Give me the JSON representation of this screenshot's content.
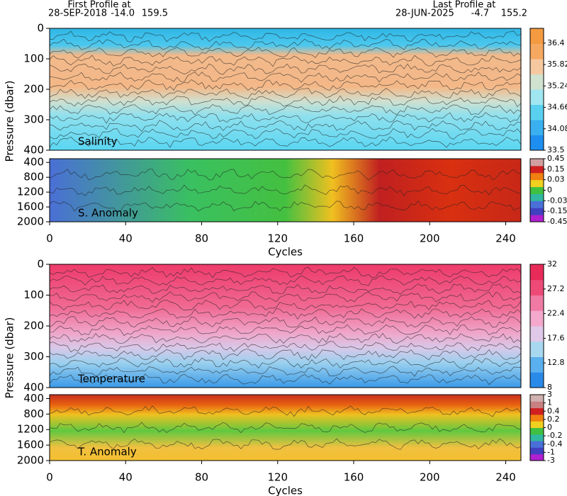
{
  "header": {
    "first": {
      "label": "First Profile at",
      "date": "28-SEP-2018",
      "lat": "-14.0",
      "lon": "159.5"
    },
    "last": {
      "label": "Last Profile at",
      "date": "28-JUN-2025",
      "lat": "-4.7",
      "lon": "155.2"
    }
  },
  "chart_data": [
    {
      "type": "contour",
      "label": "Salinity",
      "ylabel": "Pressure (dbar)",
      "ylim": [
        0,
        400
      ],
      "yticks": [
        0,
        100,
        200,
        300,
        400
      ],
      "colorbar": {
        "scale": "linear",
        "lim": [
          33.5,
          36.8
        ],
        "ticks": [
          33.5,
          34.08,
          34.66,
          35.24,
          35.82,
          36.4
        ]
      }
    },
    {
      "type": "contour",
      "label": "S. Anomaly",
      "xlabel": "Cycles",
      "xlim": [
        0,
        248
      ],
      "xticks": [
        0,
        40,
        80,
        120,
        160,
        200,
        240
      ],
      "ylim": [
        300,
        2000
      ],
      "yticks": [
        400,
        800,
        1200,
        1600,
        2000
      ],
      "colorbar": {
        "scale": "levels",
        "ticks": [
          -0.45,
          -0.15,
          -0.03,
          0,
          0.03,
          0.15,
          0.45
        ]
      }
    },
    {
      "type": "contour",
      "label": "Temperature",
      "ylabel": "Pressure (dbar)",
      "ylim": [
        0,
        400
      ],
      "yticks": [
        0,
        100,
        200,
        300,
        400
      ],
      "colorbar": {
        "scale": "linear",
        "lim": [
          8,
          32
        ],
        "ticks": [
          8,
          12.8,
          17.6,
          22.4,
          27.2,
          32
        ]
      }
    },
    {
      "type": "contour",
      "label": "T. Anomaly",
      "xlabel": "Cycles",
      "xlim": [
        0,
        248
      ],
      "xticks": [
        0,
        40,
        80,
        120,
        160,
        200,
        240
      ],
      "ylim": [
        300,
        2000
      ],
      "yticks": [
        400,
        800,
        1200,
        1600,
        2000
      ],
      "colorbar": {
        "scale": "levels",
        "ticks": [
          -3,
          -1,
          -0.4,
          -0.2,
          0,
          0.2,
          0.4,
          1,
          3
        ]
      }
    }
  ]
}
